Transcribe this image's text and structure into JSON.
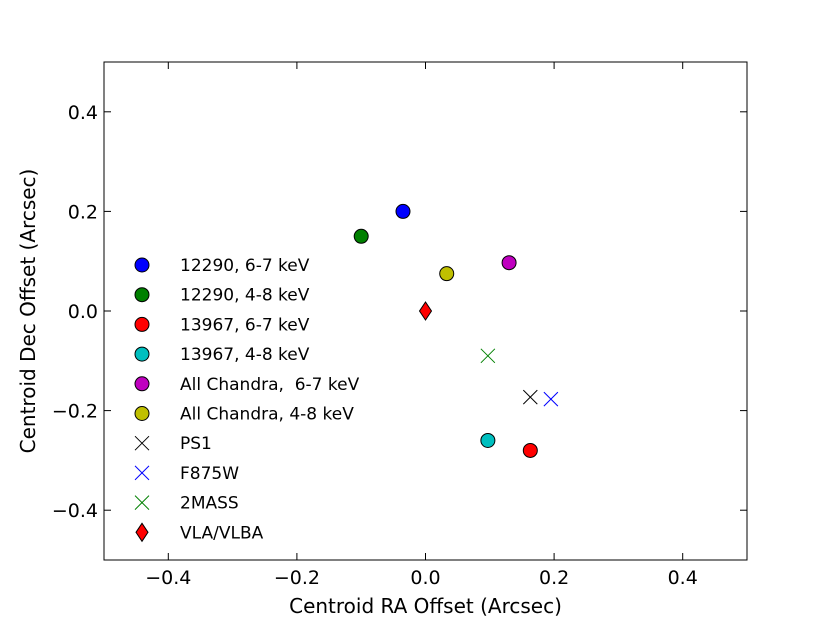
{
  "chart_data": {
    "type": "scatter",
    "title": "",
    "xlabel": "Centroid RA Offset (Arcsec)",
    "ylabel": "Centroid Dec Offset (Arcsec)",
    "xlim": [
      -0.5,
      0.5
    ],
    "ylim": [
      -0.5,
      0.5
    ],
    "xticks": [
      -0.4,
      -0.2,
      0.0,
      0.2,
      0.4
    ],
    "yticks": [
      -0.4,
      -0.2,
      0.0,
      0.2,
      0.4
    ],
    "xtick_labels": [
      "−0.4",
      "−0.2",
      "0.0",
      "0.2",
      "0.4"
    ],
    "ytick_labels": [
      "−0.4",
      "−0.2",
      "0.0",
      "0.2",
      "0.4"
    ],
    "grid": false,
    "legend_position": "left",
    "series": [
      {
        "name": "12290, 6-7 keV",
        "marker": "circle",
        "color": "#0000ff",
        "x": -0.035,
        "y": 0.2
      },
      {
        "name": "12290, 4-8 keV",
        "marker": "circle",
        "color": "#008000",
        "x": -0.1,
        "y": 0.15
      },
      {
        "name": "13967, 6-7 keV",
        "marker": "circle",
        "color": "#ff0000",
        "x": 0.163,
        "y": -0.28
      },
      {
        "name": "13967, 4-8 keV",
        "marker": "circle",
        "color": "#00bfbf",
        "x": 0.097,
        "y": -0.26
      },
      {
        "name": "All Chandra,  6-7 keV",
        "marker": "circle",
        "color": "#bf00bf",
        "x": 0.13,
        "y": 0.097
      },
      {
        "name": "All Chandra, 4-8 keV",
        "marker": "circle",
        "color": "#bfbf00",
        "x": 0.033,
        "y": 0.075
      },
      {
        "name": "PS1",
        "marker": "x",
        "color": "#000000",
        "x": 0.163,
        "y": -0.173
      },
      {
        "name": "F875W",
        "marker": "x",
        "color": "#0000ff",
        "x": 0.195,
        "y": -0.177
      },
      {
        "name": "2MASS",
        "marker": "x",
        "color": "#008000",
        "x": 0.097,
        "y": -0.09
      },
      {
        "name": "VLA/VLBA",
        "marker": "diamond",
        "color": "#ff0000",
        "x": 0.0,
        "y": 0.0
      }
    ]
  }
}
